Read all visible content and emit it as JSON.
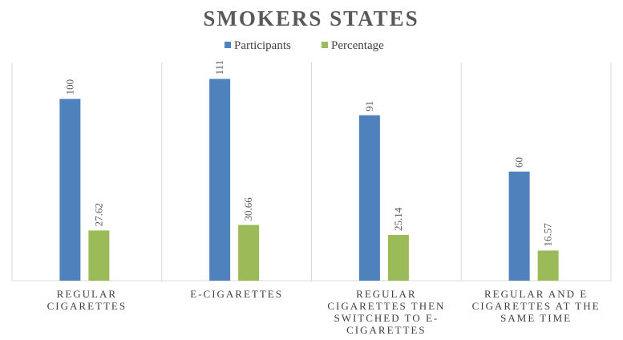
{
  "chart_data": {
    "type": "bar",
    "title": "SMOKERS STATES",
    "categories": [
      [
        "REGULAR",
        "CIGARETTES"
      ],
      [
        "E-CIGARETTES"
      ],
      [
        "REGULAR",
        "CIGARETTES THEN",
        "SWITCHED TO E-",
        "CIGARETTES"
      ],
      [
        "REGULAR AND E",
        "CIGARETTES AT THE",
        "SAME TIME"
      ]
    ],
    "series": [
      {
        "name": "Participants",
        "values": [
          100,
          111,
          91,
          60
        ],
        "color": "#4F81BD",
        "labels": [
          "100",
          "111",
          "91",
          "60"
        ]
      },
      {
        "name": "Percentage",
        "values": [
          27.62,
          30.66,
          25.14,
          16.57
        ],
        "color": "#9BBB59",
        "labels": [
          "27.62",
          "30.66",
          "25.14",
          "16.57"
        ]
      }
    ],
    "ylim": [
      0,
      120
    ],
    "legend_position": "top-center",
    "grid": false
  }
}
